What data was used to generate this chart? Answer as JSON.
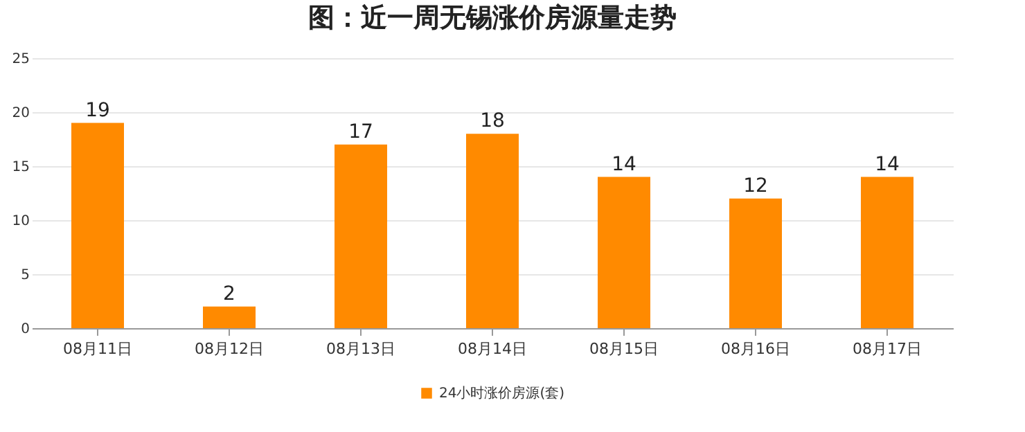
{
  "chart_data": {
    "type": "bar",
    "title": "图：近一周无锡涨价房源量走势",
    "categories": [
      "08月11日",
      "08月12日",
      "08月13日",
      "08月14日",
      "08月15日",
      "08月16日",
      "08月17日"
    ],
    "series": [
      {
        "name": "24小时涨价房源(套)",
        "color": "#ff8a00",
        "values": [
          19,
          2,
          17,
          18,
          14,
          12,
          14
        ]
      }
    ],
    "ylim": [
      0,
      25
    ],
    "yticks": [
      0,
      5,
      10,
      15,
      20,
      25
    ],
    "grid": "y",
    "legend": "bottom",
    "data_labels": true
  }
}
